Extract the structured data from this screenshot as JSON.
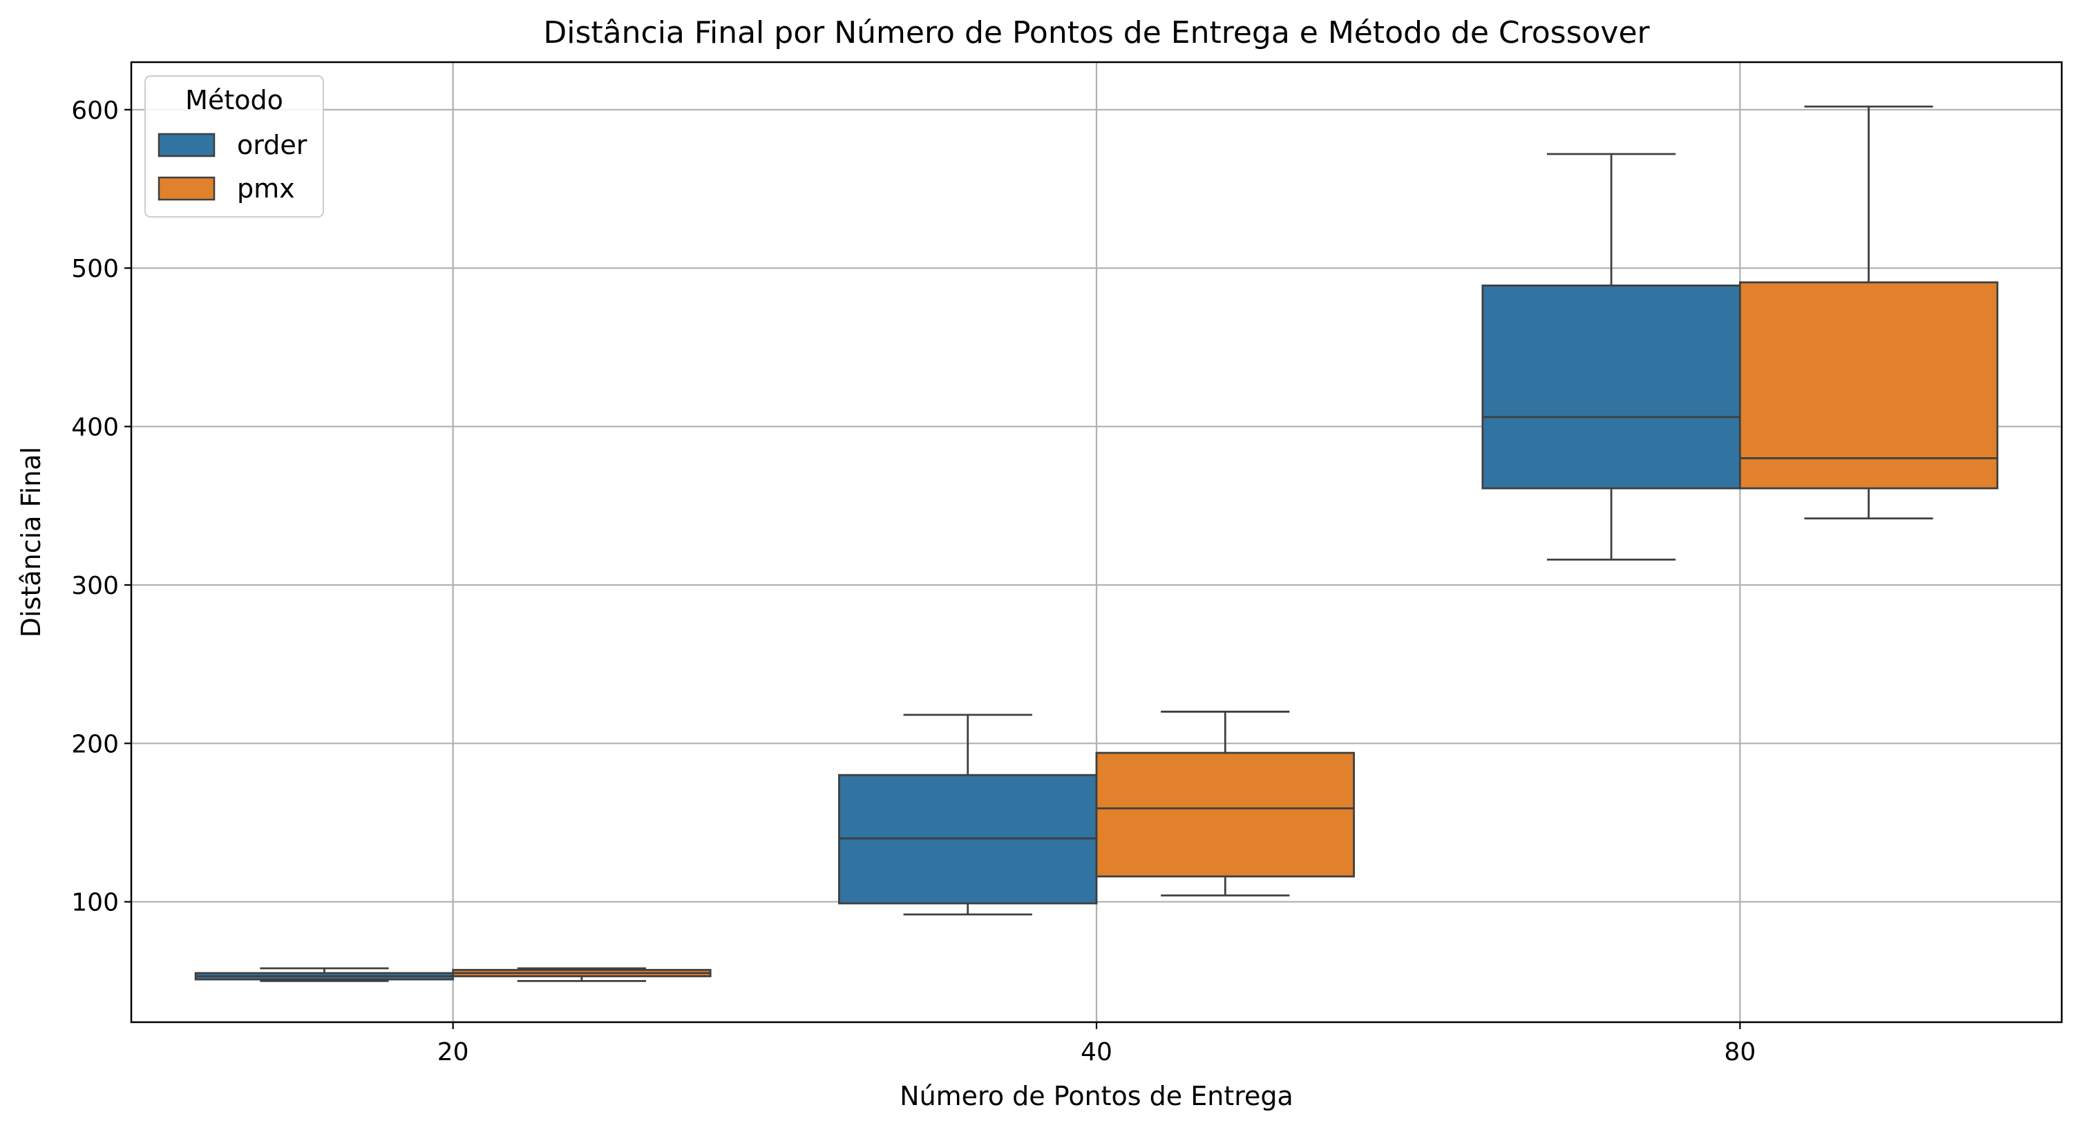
{
  "chart_data": {
    "type": "box",
    "title": "Distância Final por Número de Pontos de Entrega e Método de Crossover",
    "xlabel": "Número de Pontos de Entrega",
    "ylabel": "Distância Final",
    "categories": [
      "20",
      "40",
      "80"
    ],
    "ylim": [
      24,
      630
    ],
    "yticks": [
      100,
      200,
      300,
      400,
      500,
      600
    ],
    "grid": true,
    "legend": {
      "title": "Método",
      "position": "top-left"
    },
    "series": [
      {
        "name": "order",
        "color": "#3274a1",
        "boxes": [
          {
            "whisker_low": 50,
            "q1": 51,
            "median": 53,
            "q3": 55,
            "whisker_high": 58
          },
          {
            "whisker_low": 92,
            "q1": 99,
            "median": 140,
            "q3": 180,
            "whisker_high": 218
          },
          {
            "whisker_low": 316,
            "q1": 361,
            "median": 406,
            "q3": 489,
            "whisker_high": 572
          }
        ]
      },
      {
        "name": "pmx",
        "color": "#e1812c",
        "boxes": [
          {
            "whisker_low": 50,
            "q1": 53,
            "median": 55,
            "q3": 57,
            "whisker_high": 58
          },
          {
            "whisker_low": 104,
            "q1": 116,
            "median": 159,
            "q3": 194,
            "whisker_high": 220
          },
          {
            "whisker_low": 342,
            "q1": 361,
            "median": 380,
            "q3": 491,
            "whisker_high": 602
          }
        ]
      }
    ]
  }
}
